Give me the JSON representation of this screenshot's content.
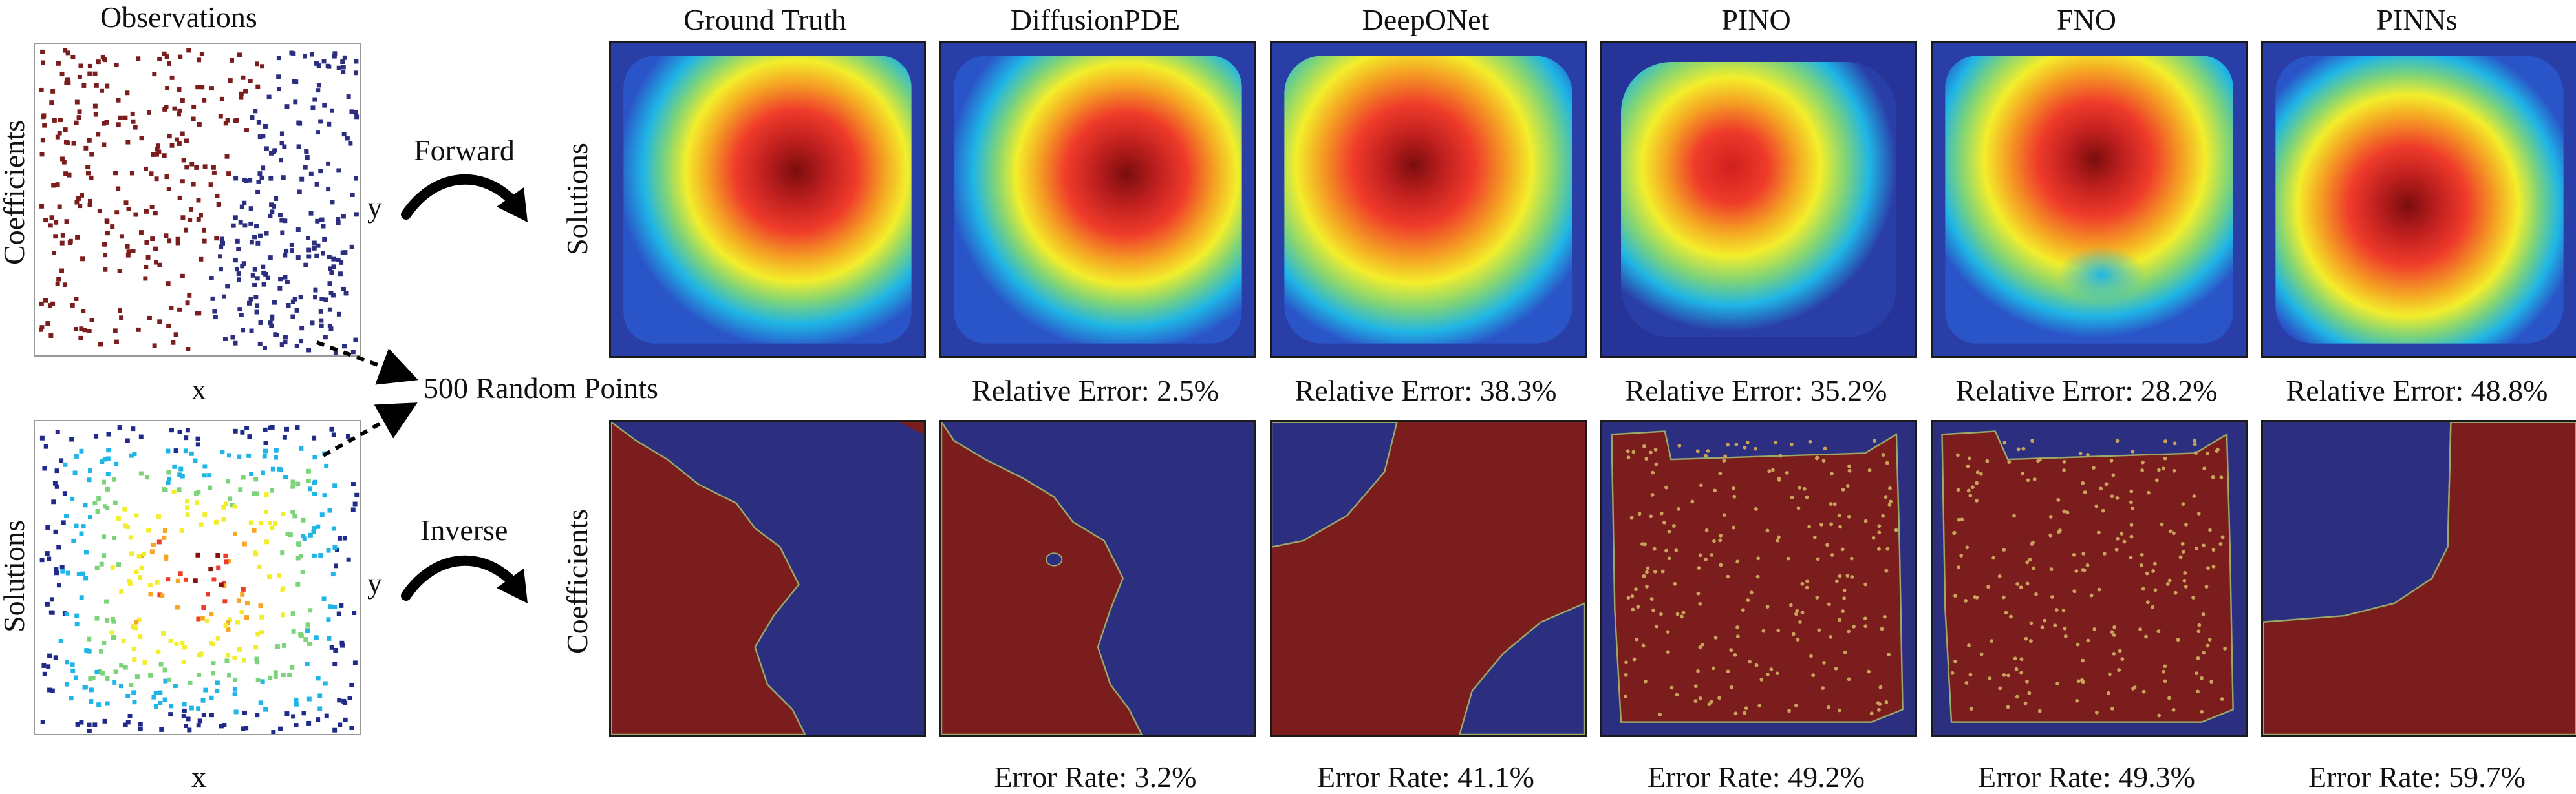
{
  "observations_title": "Observations",
  "left_labels": {
    "coefficients": "Coefficients",
    "solutions": "Solutions"
  },
  "axis": {
    "x": "x",
    "y": "y"
  },
  "arrows": {
    "forward": "Forward",
    "inverse": "Inverse",
    "random_points": "500 Random Points"
  },
  "row_labels": {
    "solutions": "Solutions",
    "coefficients": "Coefficients"
  },
  "columns": [
    {
      "title": "Ground Truth",
      "relative_error": "",
      "error_rate": ""
    },
    {
      "title": "DiffusionPDE",
      "relative_error": "Relative Error: 2.5%",
      "error_rate": "Error Rate: 3.2%"
    },
    {
      "title": "DeepONet",
      "relative_error": "Relative Error: 38.3%",
      "error_rate": "Error Rate: 41.1%"
    },
    {
      "title": "PINO",
      "relative_error": "Relative Error: 35.2%",
      "error_rate": "Error Rate: 49.2%"
    },
    {
      "title": "FNO",
      "relative_error": "Relative Error: 28.2%",
      "error_rate": "Error Rate: 49.3%"
    },
    {
      "title": "PINNs",
      "relative_error": "Relative Error: 48.8%",
      "error_rate": "Error Rate: 59.7%"
    }
  ],
  "colors": {
    "coef_red": "#7b1d1d",
    "coef_blue": "#2c2f80",
    "boundary": "#9aa86a",
    "heat_low": "#1f2a8a",
    "heat_high": "#6b0f0f"
  }
}
